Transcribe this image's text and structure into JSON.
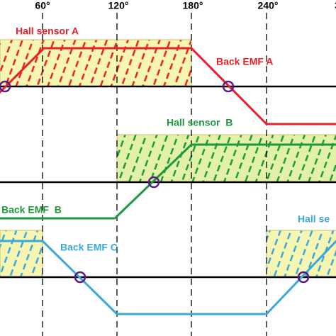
{
  "header": {
    "angles": [
      "60°",
      "120°",
      "180°",
      "240°",
      "3"
    ]
  },
  "phases": [
    {
      "hall_label": "Hall sensor A",
      "emf_label": "Back EMF A"
    },
    {
      "hall_label": "Hall sensor  B",
      "emf_label": "Back EMF  B"
    },
    {
      "hall_label": "Hall se",
      "emf_label": "Back EMF C"
    }
  ]
}
